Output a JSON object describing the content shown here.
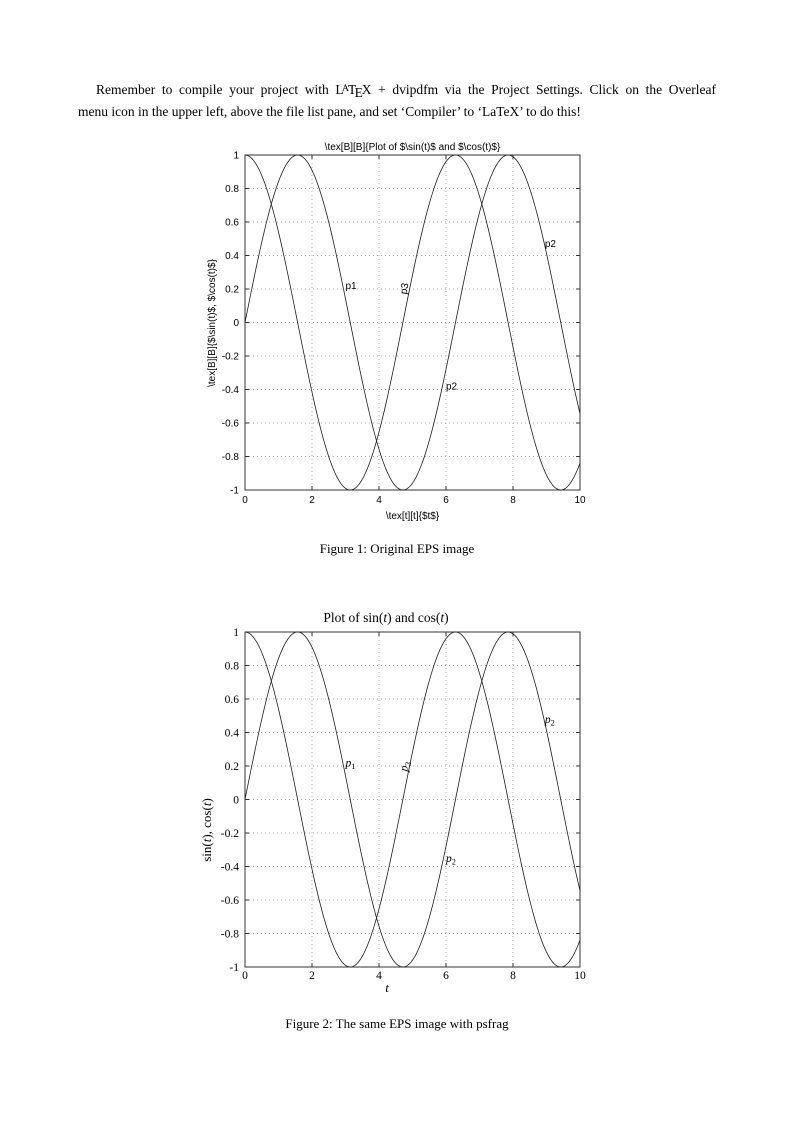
{
  "page": {
    "background": "#ffffff"
  },
  "intro": {
    "line1": {
      "before": "Remember to compile your project with ",
      "after": " + dvipdfm via the Project Settings. Click on the Overleaf"
    },
    "latex": {
      "l": "L",
      "a": "A",
      "t": "T",
      "e": "E",
      "x": "X"
    },
    "line2": "menu icon in the upper left, above the file list pane, and set ‘Compiler’ to ‘LaTeX’ to do this!"
  },
  "figures": [
    {
      "caption": "Figure 1: Original EPS image"
    },
    {
      "caption": "Figure 2: The same EPS image with psfrag"
    }
  ],
  "chart_data": [
    {
      "type": "line",
      "title": "\\tex[B][B]{Plot of $\\sin(t)$ and $\\cos(t)$}",
      "title_parts": [
        {
          "t": "\\tex[B][B]{Plot of $\\sin(t)$ and $\\cos(t)$}"
        }
      ],
      "xlabel": "\\tex[t][t]{$t$}",
      "xlabel_parts": [
        {
          "t": "\\tex[t][t]{$t$}"
        }
      ],
      "ylabel": "\\tex[B][B]{$\\sin(t)$, $\\cos(t)$}",
      "ylabel_parts": [
        {
          "t": "\\tex[B][B]{$\\sin(t)$, $\\cos(t)$}"
        }
      ],
      "x_range": [
        0,
        10
      ],
      "y_range": [
        -1,
        1
      ],
      "x_tick_values": [
        0,
        2,
        4,
        6,
        8,
        10
      ],
      "x_tick_labels": [
        "0",
        "2",
        "4",
        "6",
        "8",
        "10"
      ],
      "y_tick_values": [
        1,
        0.8,
        0.6,
        0.4,
        0.2,
        0,
        -0.2,
        -0.4,
        -0.6,
        -0.8,
        -1
      ],
      "y_tick_labels": [
        "1",
        "0.8",
        "0.6",
        "0.4",
        "0.2",
        "0",
        "-0.2",
        "-0.4",
        "-0.6",
        "-0.8",
        "-1"
      ],
      "grid": true,
      "legend": null,
      "series": [
        {
          "name": "sin(t)",
          "fn": "sin"
        },
        {
          "name": "cos(t)",
          "fn": "cos"
        }
      ],
      "annotations": [
        {
          "text": "p1",
          "t": 3.0,
          "y": 0.22
        },
        {
          "text": "p3",
          "t": 4.72,
          "y": 0.17,
          "rotate": -80
        },
        {
          "text": "p2",
          "t": 6.0,
          "y": -0.38
        },
        {
          "text": "p2",
          "t": 8.95,
          "y": 0.47
        }
      ]
    },
    {
      "type": "line",
      "title": "Plot of sin(t) and cos(t)",
      "title_parts": [
        {
          "t": "Plot of sin("
        },
        {
          "t": "t",
          "i": true
        },
        {
          "t": ") and cos("
        },
        {
          "t": "t",
          "i": true
        },
        {
          "t": ")"
        }
      ],
      "xlabel": "t",
      "xlabel_parts": [
        {
          "t": "t",
          "i": true
        }
      ],
      "ylabel": "sin(t), cos(t)",
      "ylabel_parts": [
        {
          "t": "sin("
        },
        {
          "t": "t",
          "i": true
        },
        {
          "t": "), cos("
        },
        {
          "t": "t",
          "i": true
        },
        {
          "t": ")"
        }
      ],
      "x_range": [
        0,
        10
      ],
      "y_range": [
        -1,
        1
      ],
      "x_tick_values": [
        0,
        2,
        4,
        6,
        8,
        10
      ],
      "x_tick_labels": [
        "0",
        "2",
        "4",
        "6",
        "8",
        "10"
      ],
      "y_tick_values": [
        1,
        0.8,
        0.6,
        0.4,
        0.2,
        0,
        -0.2,
        -0.4,
        -0.6,
        -0.8,
        -1
      ],
      "y_tick_labels": [
        "1",
        "0.8",
        "0.6",
        "0.4",
        "0.2",
        "0",
        "-0.2",
        "-0.4",
        "-0.6",
        "-0.8",
        "-1"
      ],
      "grid": true,
      "legend": null,
      "series": [
        {
          "name": "sin(t)",
          "fn": "sin"
        },
        {
          "name": "cos(t)",
          "fn": "cos"
        }
      ],
      "annotations": [
        {
          "text": "p",
          "sub": "1",
          "italic": true,
          "t": 3.0,
          "y": 0.22
        },
        {
          "text": "p",
          "sub": "3",
          "italic": true,
          "t": 4.72,
          "y": 0.17,
          "rotate": -80
        },
        {
          "text": "p",
          "sub": "2",
          "italic": true,
          "t": 6.0,
          "y": -0.35
        },
        {
          "text": "p",
          "sub": "2",
          "italic": true,
          "t": 8.95,
          "y": 0.48
        }
      ]
    }
  ]
}
